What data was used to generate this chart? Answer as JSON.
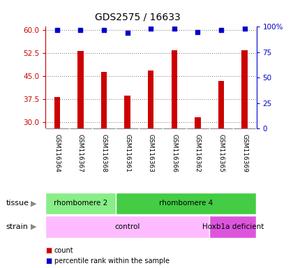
{
  "title": "GDS2575 / 16633",
  "samples": [
    "GSM116364",
    "GSM116367",
    "GSM116368",
    "GSM116361",
    "GSM116363",
    "GSM116366",
    "GSM116362",
    "GSM116365",
    "GSM116369"
  ],
  "counts": [
    38.2,
    53.2,
    46.5,
    38.8,
    46.8,
    53.5,
    31.8,
    43.5,
    53.5
  ],
  "percentiles": [
    97,
    97,
    97,
    94,
    98,
    98,
    95,
    97,
    98
  ],
  "ylim_left": [
    28,
    61
  ],
  "ylim_right": [
    0,
    100
  ],
  "yticks_left": [
    30,
    37.5,
    45,
    52.5,
    60
  ],
  "yticks_right": [
    0,
    25,
    50,
    75,
    100
  ],
  "tissue_groups": [
    {
      "label": "rhombomere 2",
      "start": 0,
      "end": 3,
      "color": "#88ee88"
    },
    {
      "label": "rhombomere 4",
      "start": 3,
      "end": 9,
      "color": "#44cc44"
    }
  ],
  "strain_groups": [
    {
      "label": "control",
      "start": 0,
      "end": 7,
      "color": "#ffbbff"
    },
    {
      "label": "Hoxb1a deficient",
      "start": 7,
      "end": 9,
      "color": "#dd55dd"
    }
  ],
  "bar_color": "#cc0000",
  "dot_color": "#0000cc",
  "background_color": "#ffffff",
  "grid_color": "#888888",
  "left_axis_color": "#cc0000",
  "right_axis_color": "#0000cc",
  "sample_bg_color": "#bbbbbb",
  "sample_sep_color": "#ffffff",
  "legend_items": [
    {
      "color": "#cc0000",
      "label": "count"
    },
    {
      "color": "#0000cc",
      "label": "percentile rank within the sample"
    }
  ]
}
